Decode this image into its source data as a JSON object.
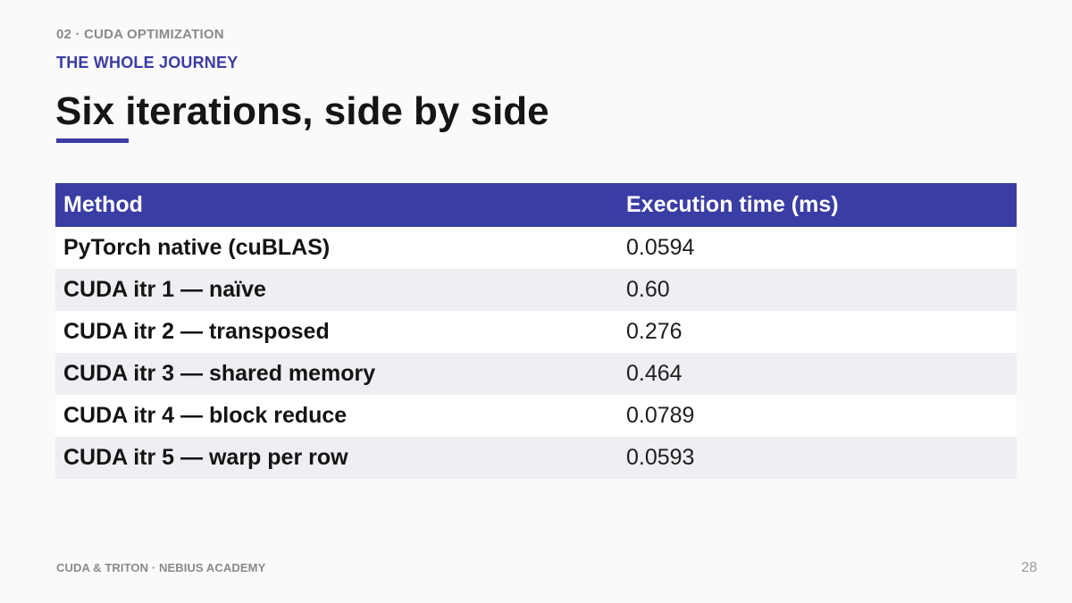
{
  "header": {
    "eyebrow": "02 · CUDA OPTIMIZATION",
    "section": "THE WHOLE JOURNEY",
    "title": "Six iterations, side by side"
  },
  "table": {
    "columns": [
      "Method",
      "Execution time (ms)"
    ],
    "rows": [
      {
        "method": "PyTorch native (cuBLAS)",
        "time": "0.0594"
      },
      {
        "method": "CUDA itr 1 — naïve",
        "time": "0.60"
      },
      {
        "method": "CUDA itr 2 — transposed",
        "time": "0.276"
      },
      {
        "method": "CUDA itr 3 — shared memory",
        "time": "0.464"
      },
      {
        "method": "CUDA itr 4 — block reduce",
        "time": "0.0789"
      },
      {
        "method": "CUDA itr 5 — warp per row",
        "time": "0.0593"
      }
    ]
  },
  "footer": {
    "left": "CUDA & TRITON · NEBIUS ACADEMY",
    "page_number": "28"
  },
  "colors": {
    "accent": "#3a3da3",
    "row_stripe": "#eeeef3",
    "background": "#fafafa"
  }
}
